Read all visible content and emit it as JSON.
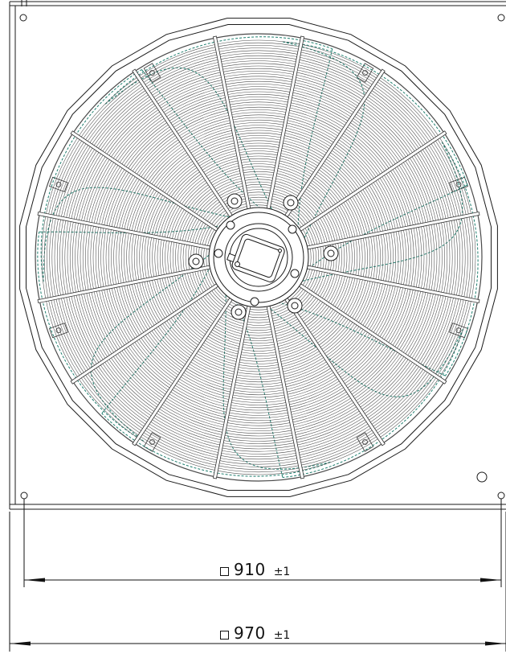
{
  "drawing": {
    "colors": {
      "line": "#1a1a1a",
      "guard": "#4a4a4a",
      "blade": "#1f7f6f",
      "paper": "#ffffff"
    },
    "dimensions": [
      {
        "symbol": "square",
        "value": "910",
        "tolerance": "±1"
      },
      {
        "symbol": "square",
        "value": "970",
        "tolerance": "±1"
      }
    ]
  }
}
